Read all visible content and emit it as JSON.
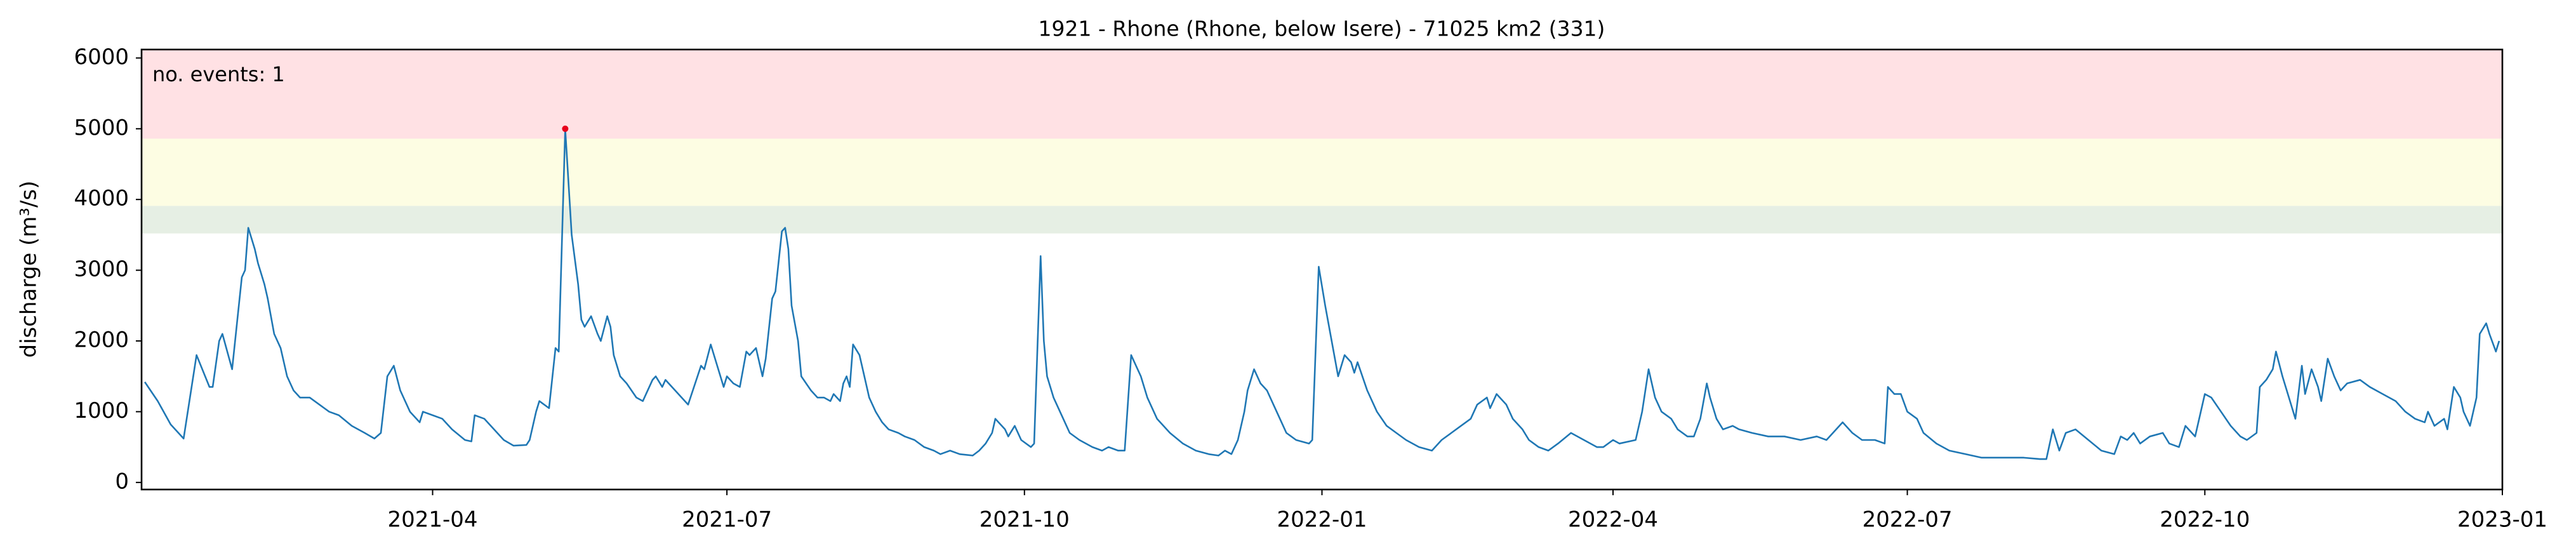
{
  "chart_data": {
    "type": "line",
    "title": "1921 - Rhone (Rhone, below Isere) - 71025 km2 (331)",
    "ylabel": "discharge (m³/s)",
    "annotation": {
      "text": "no. events: 1",
      "color": "#e8001c"
    },
    "xlim": [
      "2021-01",
      "2023-01"
    ],
    "xticks": [
      "2021-04",
      "2021-07",
      "2021-10",
      "2022-01",
      "2022-04",
      "2022-07",
      "2022-10",
      "2023-01"
    ],
    "ylim": [
      -100,
      6120
    ],
    "yticks": [
      0,
      1000,
      2000,
      3000,
      4000,
      5000,
      6000
    ],
    "thresholds": [
      {
        "from": 3520,
        "color": "#e6efe4"
      },
      {
        "from": 3910,
        "color": "#fdfde3"
      },
      {
        "from": 4860,
        "color": "#ffe1e4"
      }
    ],
    "events": {
      "x": [
        "2021-05-12"
      ],
      "values": [
        5000
      ],
      "color": "#e8001c"
    },
    "x": [
      "2021-01-02",
      "2021-01-06",
      "2021-01-10",
      "2021-01-14",
      "2021-01-18",
      "2021-01-22",
      "2021-01-23",
      "2021-01-25",
      "2021-01-26",
      "2021-01-29",
      "2021-02-01",
      "2021-02-02",
      "2021-02-03",
      "2021-02-05",
      "2021-02-06",
      "2021-02-08",
      "2021-02-09",
      "2021-02-11",
      "2021-02-13",
      "2021-02-15",
      "2021-02-17",
      "2021-02-19",
      "2021-02-22",
      "2021-02-25",
      "2021-02-28",
      "2021-03-03",
      "2021-03-07",
      "2021-03-11",
      "2021-03-14",
      "2021-03-16",
      "2021-03-18",
      "2021-03-20",
      "2021-03-22",
      "2021-03-25",
      "2021-03-28",
      "2021-03-29",
      "2021-04-01",
      "2021-04-04",
      "2021-04-07",
      "2021-04-11",
      "2021-04-13",
      "2021-04-14",
      "2021-04-17",
      "2021-04-19",
      "2021-04-23",
      "2021-04-26",
      "2021-04-30",
      "2021-05-01",
      "2021-05-03",
      "2021-05-04",
      "2021-05-07",
      "2021-05-09",
      "2021-05-10",
      "2021-05-12",
      "2021-05-14",
      "2021-05-16",
      "2021-05-17",
      "2021-05-18",
      "2021-05-20",
      "2021-05-22",
      "2021-05-23",
      "2021-05-25",
      "2021-05-26",
      "2021-05-27",
      "2021-05-29",
      "2021-05-31",
      "2021-06-03",
      "2021-06-05",
      "2021-06-08",
      "2021-06-09",
      "2021-06-11",
      "2021-06-12",
      "2021-06-15",
      "2021-06-19",
      "2021-06-23",
      "2021-06-24",
      "2021-06-26",
      "2021-06-28",
      "2021-06-30",
      "2021-07-01",
      "2021-07-03",
      "2021-07-05",
      "2021-07-07",
      "2021-07-08",
      "2021-07-10",
      "2021-07-12",
      "2021-07-13",
      "2021-07-15",
      "2021-07-16",
      "2021-07-18",
      "2021-07-19",
      "2021-07-20",
      "2021-07-21",
      "2021-07-23",
      "2021-07-24",
      "2021-07-27",
      "2021-07-29",
      "2021-07-31",
      "2021-08-02",
      "2021-08-03",
      "2021-08-05",
      "2021-08-06",
      "2021-08-07",
      "2021-08-08",
      "2021-08-09",
      "2021-08-11",
      "2021-08-12",
      "2021-08-14",
      "2021-08-16",
      "2021-08-18",
      "2021-08-20",
      "2021-08-23",
      "2021-08-25",
      "2021-08-28",
      "2021-08-31",
      "2021-09-03",
      "2021-09-05",
      "2021-09-08",
      "2021-09-11",
      "2021-09-15",
      "2021-09-17",
      "2021-09-19",
      "2021-09-21",
      "2021-09-22",
      "2021-09-25",
      "2021-09-26",
      "2021-09-28",
      "2021-09-30",
      "2021-10-03",
      "2021-10-04",
      "2021-10-06",
      "2021-10-07",
      "2021-10-08",
      "2021-10-10",
      "2021-10-13",
      "2021-10-15",
      "2021-10-18",
      "2021-10-22",
      "2021-10-25",
      "2021-10-27",
      "2021-10-30",
      "2021-11-01",
      "2021-11-03",
      "2021-11-06",
      "2021-11-08",
      "2021-11-11",
      "2021-11-15",
      "2021-11-19",
      "2021-11-23",
      "2021-11-27",
      "2021-11-30",
      "2021-12-02",
      "2021-12-04",
      "2021-12-06",
      "2021-12-08",
      "2021-12-09",
      "2021-12-11",
      "2021-12-13",
      "2021-12-15",
      "2021-12-17",
      "2021-12-19",
      "2021-12-21",
      "2021-12-24",
      "2021-12-28",
      "2021-12-29",
      "2021-12-31",
      "2022-01-02",
      "2022-01-04",
      "2022-01-06",
      "2022-01-08",
      "2022-01-10",
      "2022-01-11",
      "2022-01-12",
      "2022-01-15",
      "2022-01-18",
      "2022-01-21",
      "2022-01-24",
      "2022-01-27",
      "2022-01-31",
      "2022-02-04",
      "2022-02-07",
      "2022-02-10",
      "2022-02-13",
      "2022-02-16",
      "2022-02-18",
      "2022-02-21",
      "2022-02-22",
      "2022-02-24",
      "2022-02-27",
      "2022-03-01",
      "2022-03-04",
      "2022-03-06",
      "2022-03-09",
      "2022-03-12",
      "2022-03-15",
      "2022-03-19",
      "2022-03-23",
      "2022-03-27",
      "2022-03-29",
      "2022-04-01",
      "2022-04-03",
      "2022-04-08",
      "2022-04-10",
      "2022-04-12",
      "2022-04-14",
      "2022-04-16",
      "2022-04-19",
      "2022-04-21",
      "2022-04-24",
      "2022-04-26",
      "2022-04-28",
      "2022-04-30",
      "2022-05-01",
      "2022-05-03",
      "2022-05-05",
      "2022-05-08",
      "2022-05-10",
      "2022-05-14",
      "2022-05-19",
      "2022-05-24",
      "2022-05-29",
      "2022-06-03",
      "2022-06-06",
      "2022-06-08",
      "2022-06-11",
      "2022-06-14",
      "2022-06-17",
      "2022-06-21",
      "2022-06-24",
      "2022-06-25",
      "2022-06-27",
      "2022-06-29",
      "2022-07-01",
      "2022-07-04",
      "2022-07-06",
      "2022-07-10",
      "2022-07-14",
      "2022-07-19",
      "2022-07-24",
      "2022-08-01",
      "2022-08-06",
      "2022-08-11",
      "2022-08-13",
      "2022-08-15",
      "2022-08-17",
      "2022-08-19",
      "2022-08-22",
      "2022-08-26",
      "2022-08-30",
      "2022-09-03",
      "2022-09-05",
      "2022-09-07",
      "2022-09-09",
      "2022-09-11",
      "2022-09-14",
      "2022-09-18",
      "2022-09-20",
      "2022-09-23",
      "2022-09-25",
      "2022-09-28",
      "2022-10-01",
      "2022-10-03",
      "2022-10-06",
      "2022-10-09",
      "2022-10-12",
      "2022-10-14",
      "2022-10-17",
      "2022-10-18",
      "2022-10-20",
      "2022-10-22",
      "2022-10-23",
      "2022-10-25",
      "2022-10-27",
      "2022-10-29",
      "2022-10-31",
      "2022-11-01",
      "2022-11-03",
      "2022-11-05",
      "2022-11-06",
      "2022-11-08",
      "2022-11-10",
      "2022-11-12",
      "2022-11-14",
      "2022-11-18",
      "2022-11-21",
      "2022-11-25",
      "2022-11-29",
      "2022-12-02",
      "2022-12-05",
      "2022-12-08",
      "2022-12-09",
      "2022-12-11",
      "2022-12-14",
      "2022-12-15",
      "2022-12-17",
      "2022-12-19",
      "2022-12-20",
      "2022-12-22",
      "2022-12-24",
      "2022-12-25",
      "2022-12-27",
      "2022-12-28",
      "2022-12-30",
      "2022-12-31"
    ],
    "series": [
      {
        "color": "#1f77b4",
        "values": [
          1420,
          1150,
          820,
          620,
          1800,
          1350,
          1350,
          2000,
          2100,
          1600,
          2900,
          3000,
          3600,
          3300,
          3100,
          2800,
          2600,
          2100,
          1900,
          1500,
          1300,
          1200,
          1200,
          1100,
          1000,
          950,
          800,
          700,
          620,
          700,
          1500,
          1650,
          1300,
          1000,
          850,
          1000,
          950,
          900,
          750,
          600,
          580,
          950,
          900,
          800,
          600,
          520,
          530,
          600,
          1000,
          1150,
          1050,
          1900,
          1850,
          5000,
          3500,
          2800,
          2300,
          2200,
          2350,
          2100,
          2000,
          2350,
          2200,
          1800,
          1500,
          1400,
          1200,
          1150,
          1450,
          1500,
          1350,
          1450,
          1300,
          1100,
          1650,
          1600,
          1950,
          1650,
          1350,
          1500,
          1400,
          1350,
          1850,
          1800,
          1900,
          1500,
          1750,
          2600,
          2700,
          3550,
          3600,
          3300,
          2500,
          2000,
          1500,
          1300,
          1200,
          1200,
          1150,
          1250,
          1150,
          1400,
          1500,
          1350,
          1950,
          1800,
          1600,
          1200,
          1000,
          850,
          750,
          700,
          650,
          600,
          500,
          450,
          400,
          450,
          400,
          380,
          450,
          550,
          700,
          900,
          750,
          650,
          800,
          600,
          500,
          550,
          3200,
          2000,
          1500,
          1200,
          900,
          700,
          600,
          500,
          450,
          500,
          450,
          450,
          1800,
          1500,
          1200,
          900,
          700,
          550,
          450,
          400,
          380,
          450,
          400,
          600,
          1000,
          1300,
          1600,
          1400,
          1300,
          1100,
          900,
          700,
          600,
          550,
          600,
          3050,
          2500,
          2000,
          1500,
          1800,
          1700,
          1550,
          1700,
          1300,
          1000,
          800,
          700,
          600,
          500,
          450,
          600,
          700,
          800,
          900,
          1100,
          1200,
          1050,
          1250,
          1100,
          900,
          750,
          600,
          500,
          450,
          550,
          700,
          600,
          500,
          500,
          600,
          550,
          600,
          1000,
          1600,
          1200,
          1000,
          900,
          750,
          650,
          650,
          900,
          1400,
          1200,
          900,
          750,
          800,
          750,
          700,
          650,
          650,
          600,
          650,
          600,
          700,
          850,
          700,
          600,
          600,
          550,
          1350,
          1250,
          1250,
          1000,
          900,
          700,
          550,
          450,
          400,
          350,
          350,
          350,
          330,
          330,
          750,
          450,
          700,
          750,
          600,
          450,
          400,
          650,
          600,
          700,
          550,
          650,
          700,
          550,
          500,
          800,
          650,
          1250,
          1200,
          1000,
          800,
          650,
          600,
          700,
          1350,
          1450,
          1600,
          1850,
          1500,
          1200,
          900,
          1650,
          1250,
          1600,
          1350,
          1150,
          1750,
          1500,
          1300,
          1400,
          1450,
          1350,
          1250,
          1150,
          1000,
          900,
          850,
          1000,
          800,
          900,
          750,
          1350,
          1200,
          1000,
          800,
          1200,
          2100,
          2250,
          2100,
          1850,
          2000
        ]
      }
    ]
  }
}
